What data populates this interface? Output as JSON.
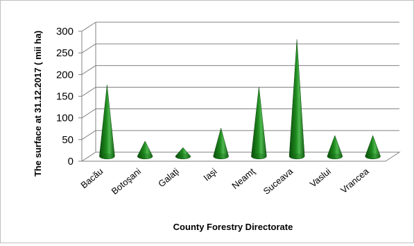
{
  "chart_data": {
    "type": "bar",
    "shape": "cone",
    "title": "",
    "xlabel": "County Forestry Directorate",
    "ylabel": "The surface at 31.12.2017 ( mii ha)",
    "categories": [
      "Bacău",
      "Botoşani",
      "Galaţi",
      "Iaşi",
      "Neamţ",
      "Suceava",
      "Vaslui",
      "Vrancea"
    ],
    "values": [
      165,
      35,
      20,
      65,
      160,
      270,
      48,
      48
    ],
    "ylim": [
      0,
      300
    ],
    "yticks": [
      0,
      50,
      100,
      150,
      200,
      250,
      300
    ],
    "grid": true,
    "legend": "none",
    "colors": {
      "fill_dark": "#0b4d0b",
      "fill_mid": "#1f8a1f",
      "fill_light": "#5cc45c",
      "grid": "#808080"
    }
  }
}
